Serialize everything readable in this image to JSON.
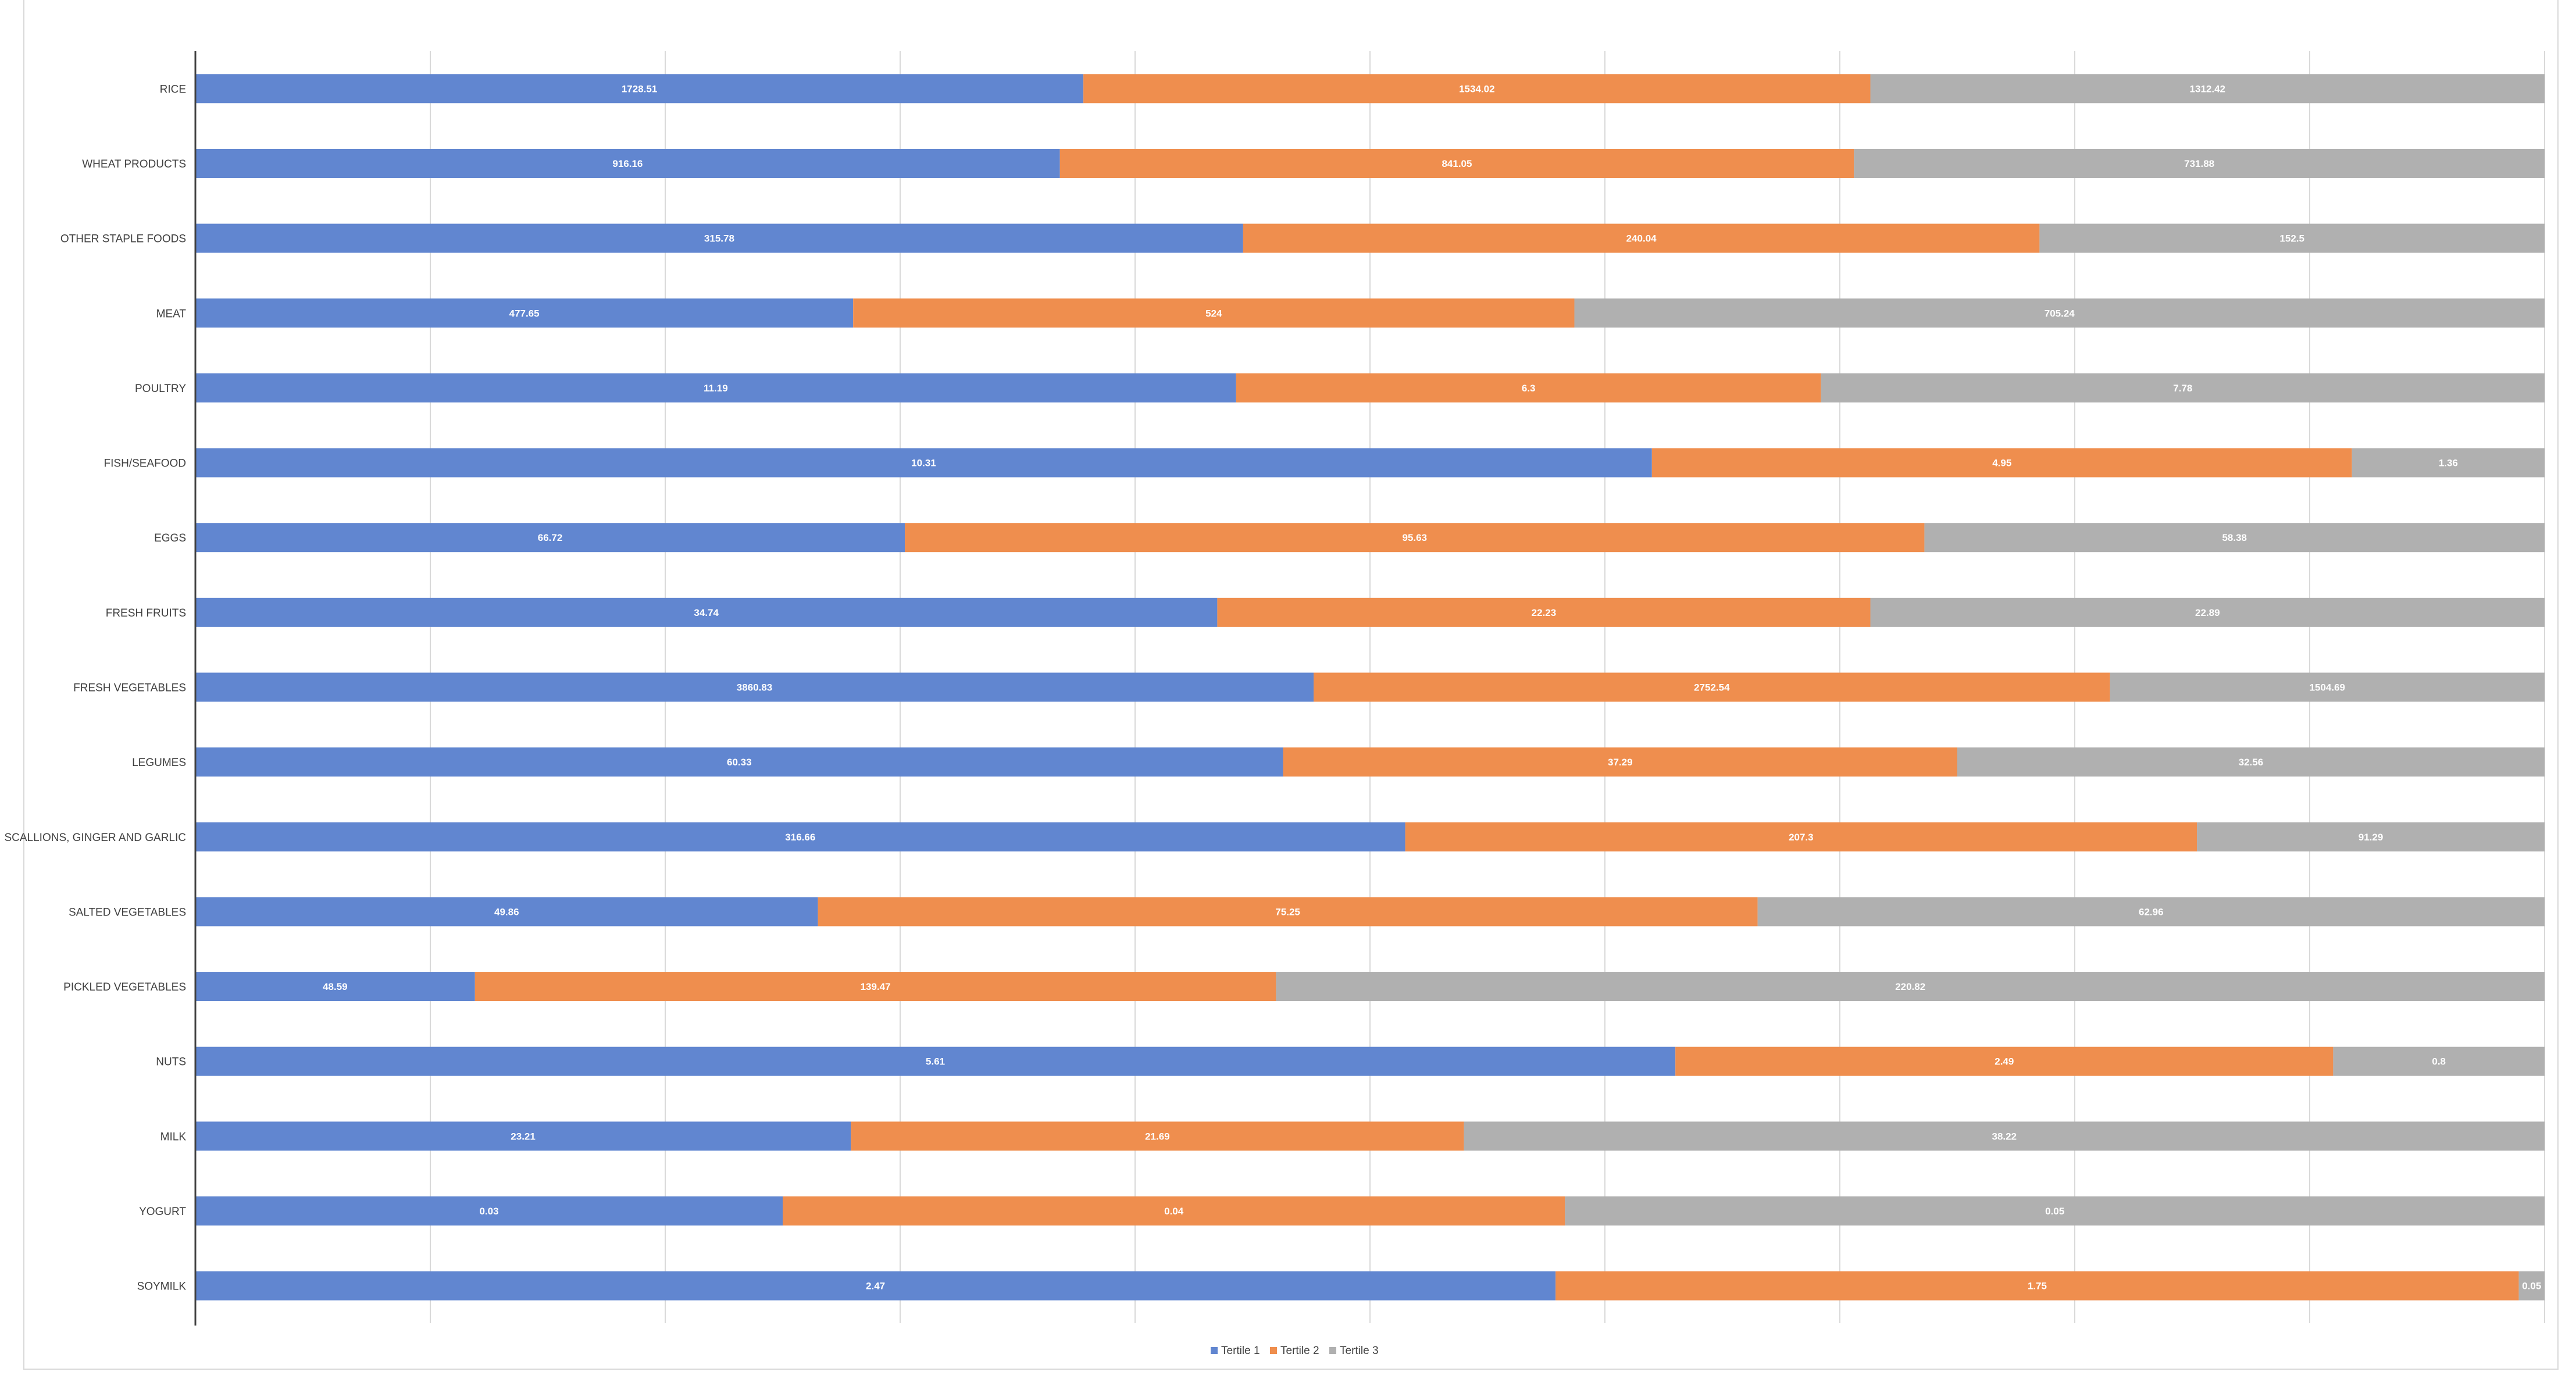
{
  "chart_data": {
    "type": "bar",
    "orientation": "horizontal",
    "stacked": "percent",
    "title": "",
    "xlabel": "",
    "ylabel": "",
    "xlim": [
      0,
      100
    ],
    "grid": true,
    "legend_position": "bottom",
    "categories": [
      "RICE",
      "WHEAT PRODUCTS",
      "OTHER STAPLE FOODS",
      "MEAT",
      "POULTRY",
      "FISH/SEAFOOD",
      "EGGS",
      "FRESH FRUITS",
      "FRESH VEGETABLES",
      "LEGUMES",
      "SCALLIONS, GINGER AND GARLIC",
      "SALTED VEGETABLES",
      "PICKLED VEGETABLES",
      "NUTS",
      "MILK",
      "YOGURT",
      "SOYMILK"
    ],
    "series": [
      {
        "name": "Tertile 1",
        "color": "#6186d0",
        "values": [
          1728.51,
          916.16,
          315.78,
          477.65,
          11.19,
          10.31,
          66.72,
          34.74,
          3860.83,
          60.33,
          316.66,
          49.86,
          48.59,
          5.61,
          23.21,
          0.03,
          2.47
        ],
        "labels": [
          "1728.51",
          "916.16",
          "315.78",
          "477.65",
          "11.19",
          "10.31",
          "66.72",
          "34.74",
          "3860.83",
          "60.33",
          "316.66",
          "49.86",
          "48.59",
          "5.61",
          "23.21",
          "0.03",
          "2.47"
        ]
      },
      {
        "name": "Tertile 2",
        "color": "#ef8e4e",
        "values": [
          1534.02,
          841.05,
          240.04,
          524,
          6.3,
          4.95,
          95.63,
          22.23,
          2752.54,
          37.29,
          207.3,
          75.25,
          139.47,
          2.49,
          21.69,
          0.04,
          1.75
        ],
        "labels": [
          "1534.02",
          "841.05",
          "240.04",
          "524",
          "6.3",
          "4.95",
          "95.63",
          "22.23",
          "2752.54",
          "37.29",
          "207.3",
          "75.25",
          "139.47",
          "2.49",
          "21.69",
          "0.04",
          "1.75"
        ]
      },
      {
        "name": "Tertile 3",
        "color": "#b0b0b0",
        "values": [
          1312.42,
          731.88,
          152.5,
          705.24,
          7.78,
          1.36,
          58.38,
          22.89,
          1504.69,
          32.56,
          91.29,
          62.96,
          220.82,
          0.8,
          38.22,
          0.05,
          0.05
        ],
        "labels": [
          "1312.42",
          "731.88",
          "152.5",
          "705.24",
          "7.78",
          "1.36",
          "58.38",
          "22.89",
          "1504.69",
          "32.56",
          "91.29",
          "62.96",
          "220.82",
          "0.8",
          "38.22",
          "0.05",
          "0.05"
        ]
      }
    ],
    "segment_shares_percent": [
      [
        37.8,
        33.5,
        28.7
      ],
      [
        36.8,
        33.8,
        29.4
      ],
      [
        44.6,
        33.9,
        21.5
      ],
      [
        28.0,
        30.7,
        41.3
      ],
      [
        44.3,
        24.9,
        30.8
      ],
      [
        62.0,
        29.8,
        8.2
      ],
      [
        30.2,
        43.4,
        26.4
      ],
      [
        43.5,
        27.8,
        28.7
      ],
      [
        47.6,
        33.9,
        18.5
      ],
      [
        46.3,
        28.7,
        25.0
      ],
      [
        51.5,
        33.7,
        14.8
      ],
      [
        26.5,
        40.0,
        33.5
      ],
      [
        11.9,
        34.1,
        54.0
      ],
      [
        63.0,
        28.0,
        9.0
      ],
      [
        27.9,
        26.1,
        46.0
      ],
      [
        25.0,
        33.3,
        41.7
      ],
      [
        57.9,
        41.0,
        1.1
      ]
    ]
  }
}
